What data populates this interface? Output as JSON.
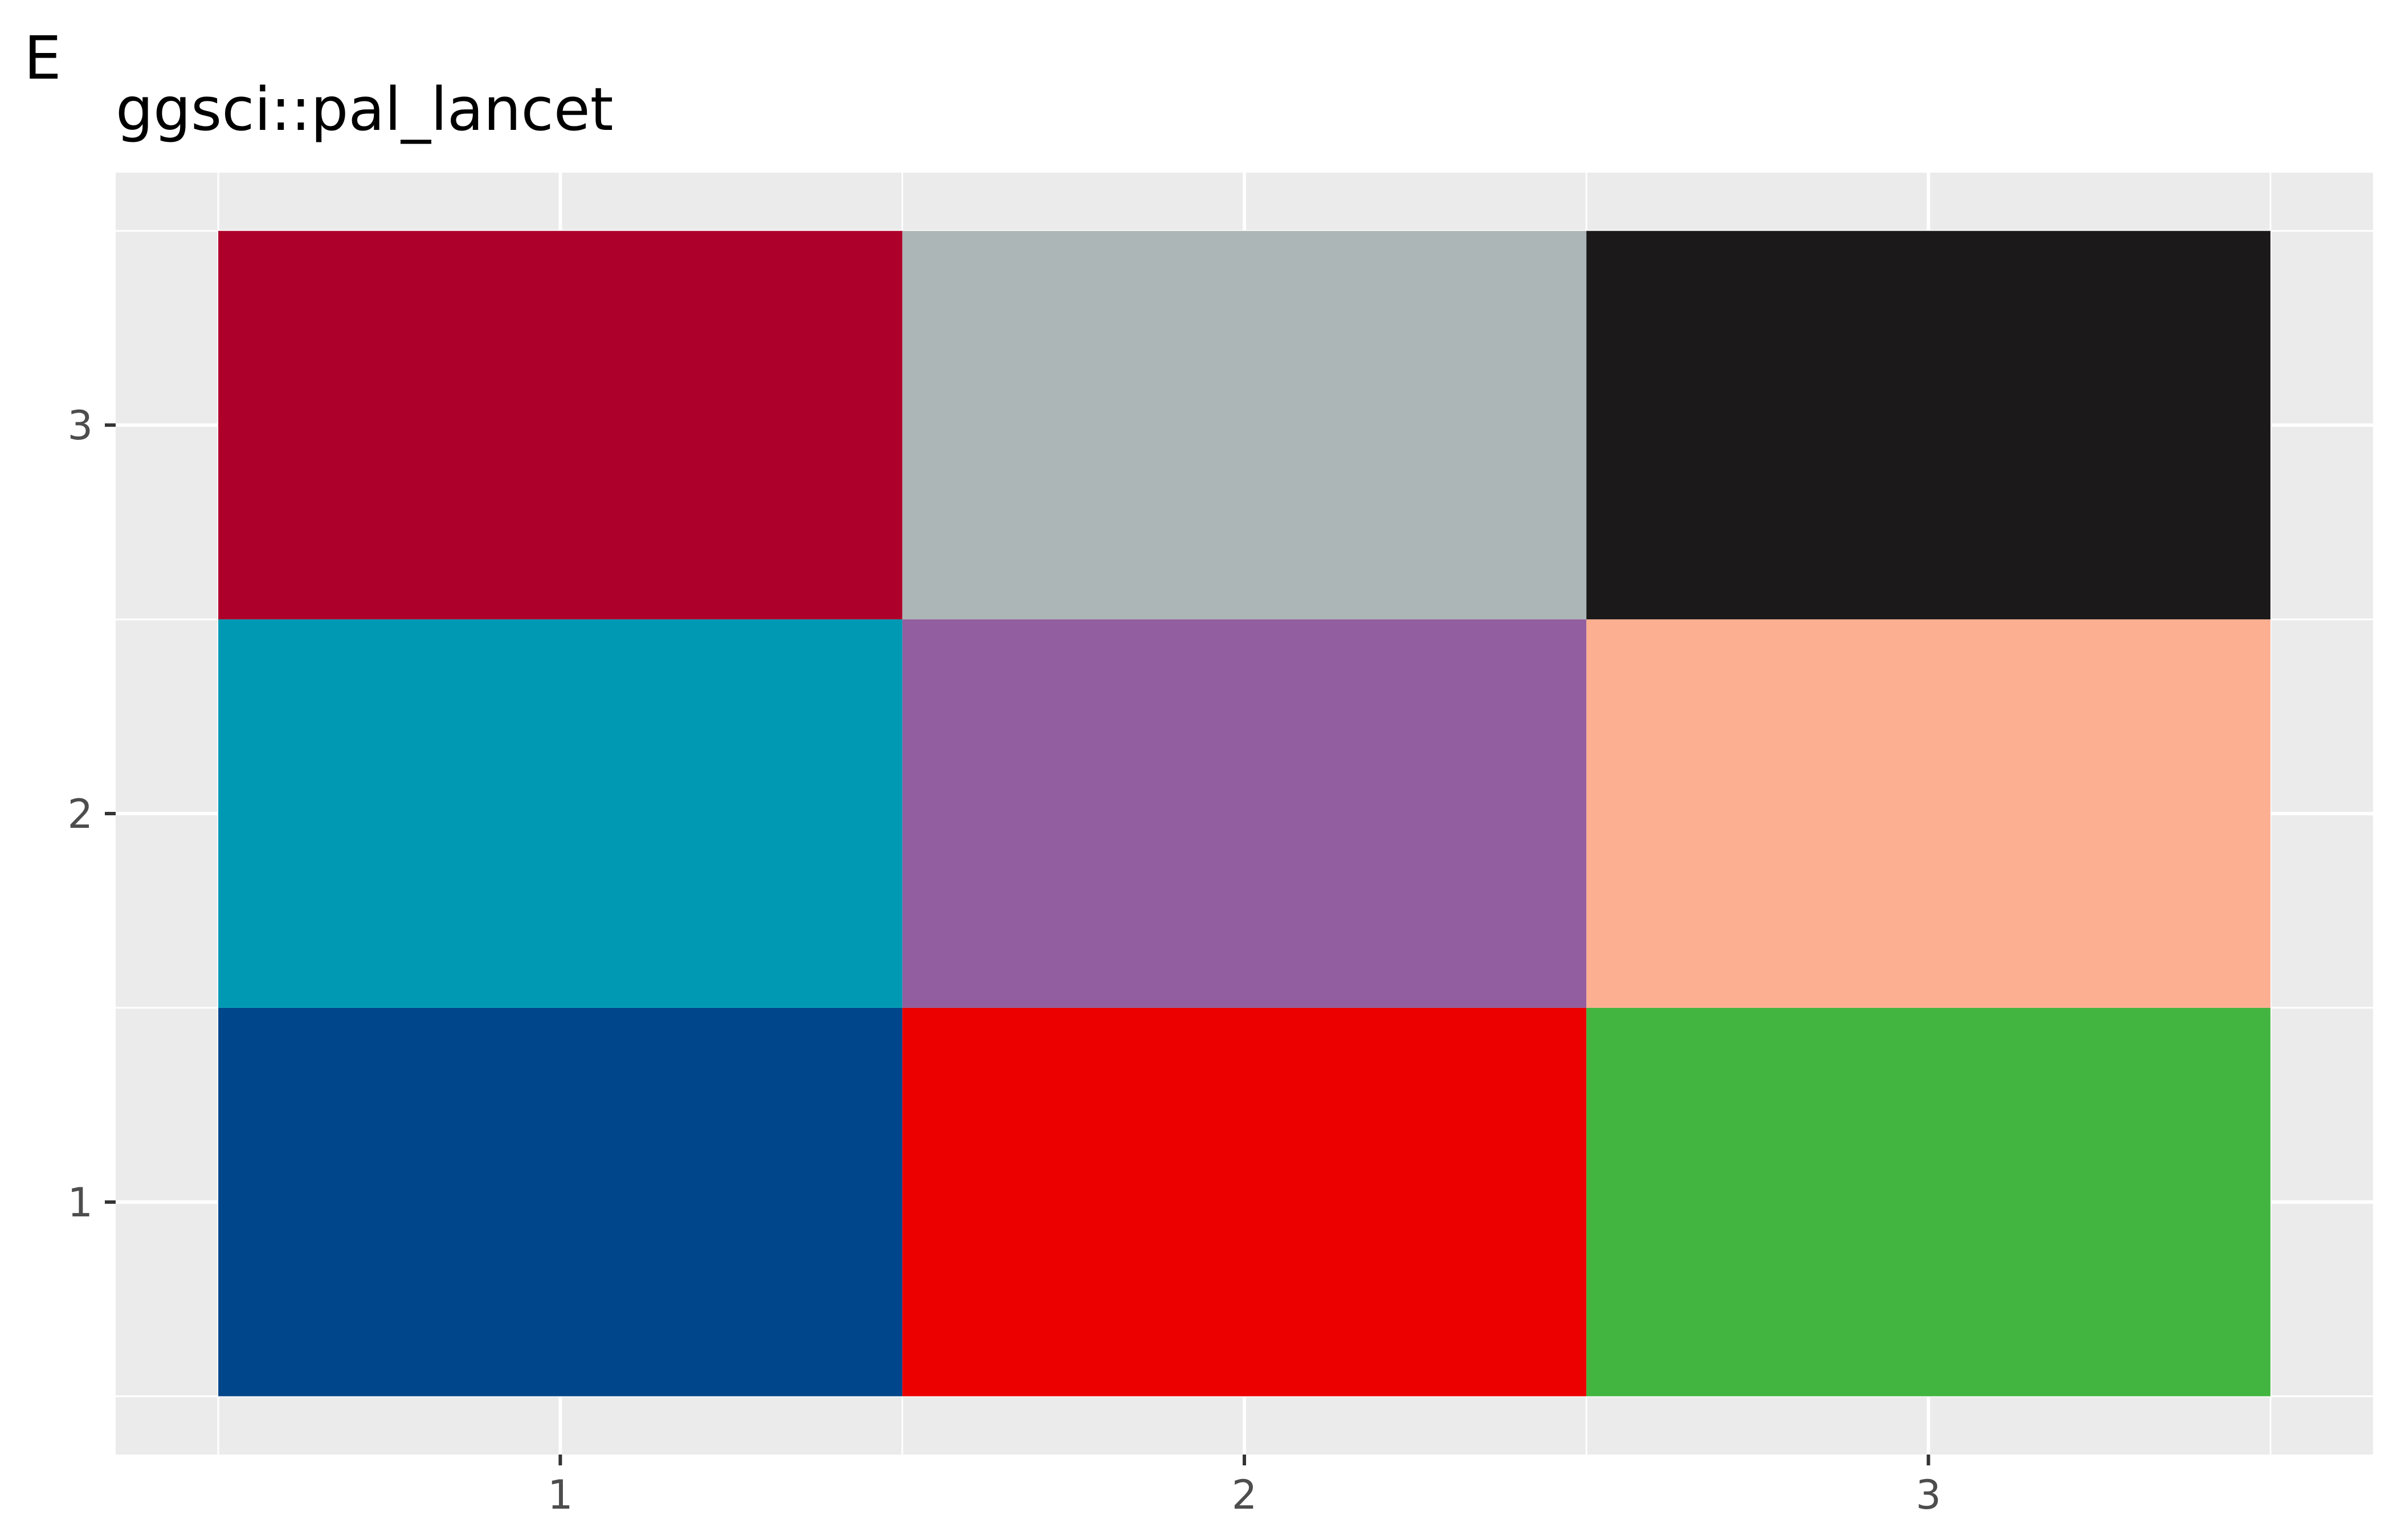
{
  "panel_tag": "E",
  "chart_data": {
    "type": "heatmap",
    "title": "ggsci::pal_lancet",
    "xlabel": "",
    "ylabel": "",
    "x_categories": [
      "1",
      "2",
      "3"
    ],
    "y_categories": [
      "1",
      "2",
      "3"
    ],
    "xlim": [
      0.35,
      3.65
    ],
    "ylim": [
      0.35,
      3.65
    ],
    "grid": true,
    "panel_background": "#EBEBEB",
    "grid_color": "#FFFFFF",
    "cells": [
      {
        "x": 1,
        "y": 1,
        "color": "#00468B"
      },
      {
        "x": 2,
        "y": 1,
        "color": "#ED0000"
      },
      {
        "x": 3,
        "y": 1,
        "color": "#42B540"
      },
      {
        "x": 1,
        "y": 2,
        "color": "#0099B4"
      },
      {
        "x": 2,
        "y": 2,
        "color": "#925E9F"
      },
      {
        "x": 3,
        "y": 2,
        "color": "#FDAF91"
      },
      {
        "x": 1,
        "y": 3,
        "color": "#AD002A"
      },
      {
        "x": 2,
        "y": 3,
        "color": "#ADB6B6"
      },
      {
        "x": 3,
        "y": 3,
        "color": "#1B1919"
      }
    ]
  }
}
